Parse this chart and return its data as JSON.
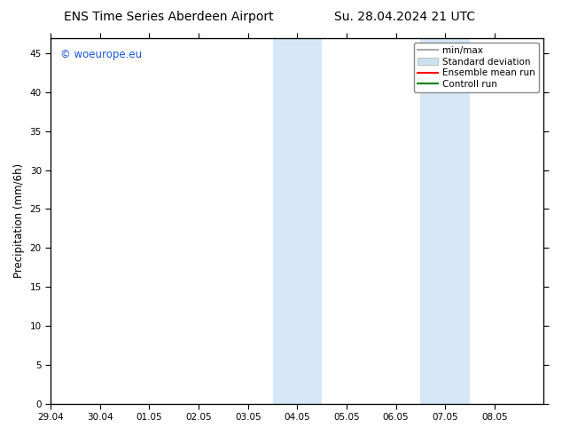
{
  "title_left": "ENS Time Series Aberdeen Airport",
  "title_right": "Su. 28.04.2024 21 UTC",
  "ylabel": "Precipitation (mm/6h)",
  "xlabel": "",
  "ylim": [
    0,
    47
  ],
  "yticks": [
    0,
    5,
    10,
    15,
    20,
    25,
    30,
    35,
    40,
    45
  ],
  "xlim": [
    0,
    10
  ],
  "xtick_labels": [
    "29.04",
    "30.04",
    "01.05",
    "02.05",
    "03.05",
    "04.05",
    "05.05",
    "06.05",
    "07.05",
    "08.05"
  ],
  "xtick_positions": [
    0,
    1,
    2,
    3,
    4,
    5,
    6,
    7,
    8,
    9
  ],
  "shaded_bands": [
    [
      4.5,
      5.0
    ],
    [
      5.0,
      5.5
    ],
    [
      7.5,
      8.0
    ],
    [
      8.0,
      8.5
    ]
  ],
  "band_color": "#d6e8f7",
  "watermark": "© woeurope.eu",
  "watermark_color": "#1a56db",
  "background_color": "#ffffff",
  "legend_items": [
    {
      "label": "min/max",
      "color": "#aaaaaa",
      "lw": 1.5,
      "ls": "-",
      "type": "line"
    },
    {
      "label": "Standard deviation",
      "color": "#cce0f0",
      "lw": 8,
      "ls": "-",
      "type": "patch"
    },
    {
      "label": "Ensemble mean run",
      "color": "red",
      "lw": 1.5,
      "ls": "-",
      "type": "line"
    },
    {
      "label": "Controll run",
      "color": "green",
      "lw": 1.5,
      "ls": "-",
      "type": "line"
    }
  ],
  "title_fontsize": 10,
  "tick_fontsize": 7.5,
  "ylabel_fontsize": 8.5,
  "legend_fontsize": 7.5
}
